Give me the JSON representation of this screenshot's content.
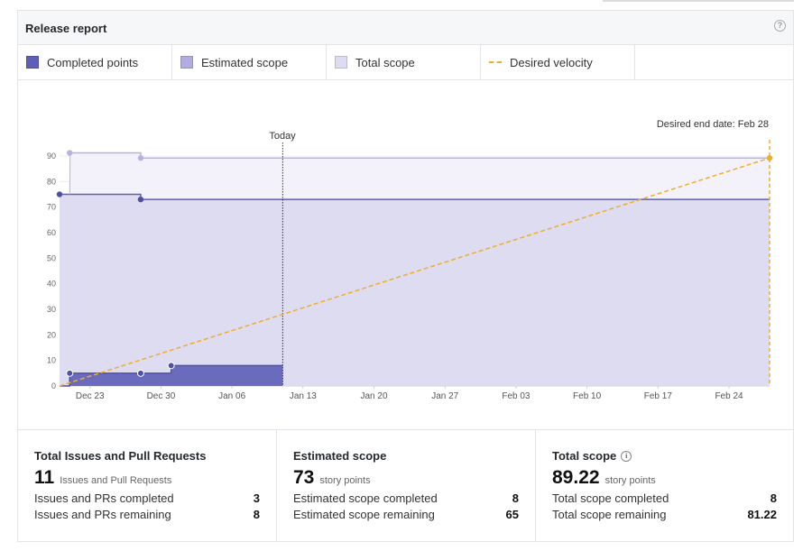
{
  "header": {
    "title": "Release report",
    "help_icon": "question-circle-icon"
  },
  "legend": [
    {
      "label": "Completed points",
      "color": "#6b6bbd",
      "kind": "swatch"
    },
    {
      "label": "Estimated scope",
      "color": "#b0ade0",
      "kind": "swatch"
    },
    {
      "label": "Total scope",
      "color": "#dcdcf2",
      "kind": "swatch"
    },
    {
      "label": "Desired velocity",
      "color": "#f0ad2c",
      "kind": "dashed-line"
    }
  ],
  "chart_data": {
    "type": "area",
    "title": "",
    "desired_end_label": "Desired end date: Feb 28",
    "today_label": "Today",
    "y_ticks": [
      0,
      10,
      20,
      30,
      40,
      50,
      60,
      70,
      80,
      90
    ],
    "x_tick_labels": [
      "Dec 23",
      "Dec 30",
      "Jan 06",
      "Jan 13",
      "Jan 20",
      "Jan 27",
      "Feb 03",
      "Feb 10",
      "Feb 17",
      "Feb 24"
    ],
    "x_tick_days": [
      3,
      10,
      17,
      24,
      31,
      38,
      45,
      52,
      59,
      66
    ],
    "x_range_days": [
      0,
      70
    ],
    "ylim": [
      0,
      100
    ],
    "today_day": 22,
    "series": [
      {
        "name": "Total scope",
        "points": [
          [
            1,
            91.22
          ],
          [
            8,
            91.22
          ],
          [
            8,
            89.22
          ],
          [
            70,
            89.22
          ]
        ],
        "markers": [
          [
            1,
            91.22
          ],
          [
            8,
            89.22
          ]
        ]
      },
      {
        "name": "Estimated scope",
        "points": [
          [
            0,
            75
          ],
          [
            8,
            75
          ],
          [
            8,
            73
          ],
          [
            70,
            73
          ]
        ],
        "markers": [
          [
            0,
            75
          ],
          [
            8,
            73
          ]
        ]
      },
      {
        "name": "Completed points",
        "points": [
          [
            0,
            0
          ],
          [
            1,
            0
          ],
          [
            1,
            5
          ],
          [
            8,
            5
          ],
          [
            11,
            5
          ],
          [
            11,
            8
          ],
          [
            22,
            8
          ]
        ],
        "markers": [
          [
            1,
            5
          ],
          [
            8,
            5
          ],
          [
            11,
            8
          ]
        ]
      },
      {
        "name": "Desired velocity",
        "points": [
          [
            0,
            0
          ],
          [
            70,
            89.22
          ]
        ],
        "markers": [
          [
            70,
            89.22
          ]
        ]
      }
    ]
  },
  "stats": [
    {
      "title": "Total Issues and Pull Requests",
      "value": "11",
      "unit": "Issues and Pull Requests",
      "rows": [
        {
          "label": "Issues and PRs completed",
          "value": "3"
        },
        {
          "label": "Issues and PRs remaining",
          "value": "8"
        }
      ]
    },
    {
      "title": "Estimated scope",
      "value": "73",
      "unit": "story points",
      "rows": [
        {
          "label": "Estimated scope completed",
          "value": "8"
        },
        {
          "label": "Estimated scope remaining",
          "value": "65"
        }
      ]
    },
    {
      "title": "Total scope",
      "info_icon": "info-circle-icon",
      "value": "89.22",
      "unit": "story points",
      "rows": [
        {
          "label": "Total scope completed",
          "value": "8"
        },
        {
          "label": "Total scope remaining",
          "value": "81.22"
        }
      ]
    }
  ]
}
